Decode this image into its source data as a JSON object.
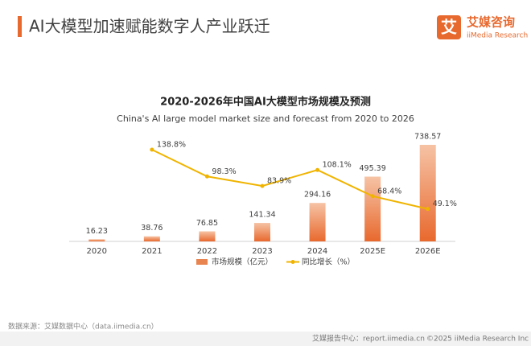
{
  "header": {
    "title": "AI大模型加速赋能数字人产业跃迁",
    "logo_name": "艾媒咨询",
    "logo_sub": "iiMedia Research",
    "logo_icon": "艾"
  },
  "chart_data": {
    "type": "bar-line",
    "title": "2020-2026年中国AI大模型市场规模及预测",
    "subtitle": "China's AI large model market size and forecast from 2020 to 2026",
    "categories": [
      "2020",
      "2021",
      "2022",
      "2023",
      "2024",
      "2025E",
      "2026E"
    ],
    "series": [
      {
        "name": "市场规模（亿元）",
        "type": "bar",
        "color": "#e8844f",
        "values": [
          16.23,
          38.76,
          76.85,
          141.34,
          294.16,
          495.39,
          738.57
        ]
      },
      {
        "name": "同比增长（%）",
        "type": "line",
        "axis": "y2",
        "color": "#f0b400",
        "values": [
          null,
          138.8,
          98.3,
          83.9,
          108.1,
          68.4,
          49.1
        ],
        "value_labels": [
          null,
          "138.8%",
          "98.3%",
          "83.9%",
          "108.1%",
          "68.4%",
          "49.1%"
        ]
      }
    ]
  },
  "footer": {
    "source": "数据来源：艾媒数据中心（data.iimedia.cn）",
    "report": "艾媒报告中心：report.iimedia.cn",
    "copyright": "©2025  iiMedia Research  Inc"
  }
}
